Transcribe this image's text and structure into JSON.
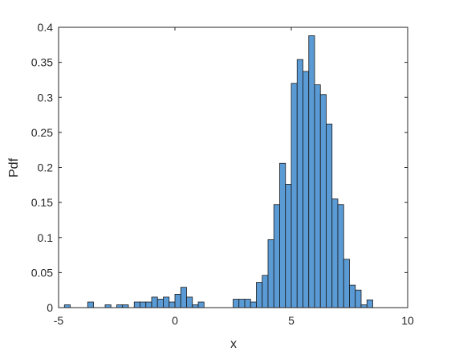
{
  "chart_data": {
    "type": "bar",
    "subtype": "histogram",
    "title": "",
    "xlabel": "x",
    "ylabel": "Pdf",
    "xlim": [
      -5,
      10
    ],
    "ylim": [
      0,
      0.4
    ],
    "xticks": [
      -5,
      0,
      5,
      10
    ],
    "xtick_labels": [
      "-5",
      "0",
      "5",
      "10"
    ],
    "yticks": [
      0,
      0.05,
      0.1,
      0.15,
      0.2,
      0.25,
      0.3,
      0.35,
      0.4
    ],
    "ytick_labels": [
      "0",
      "0.05",
      "0.1",
      "0.15",
      "0.2",
      "0.25",
      "0.3",
      "0.35",
      "0.4"
    ],
    "grid": false,
    "box": true,
    "bar_color": "#5B9BD5",
    "edge_color": "#1a1a1a",
    "axis_color": "#262626",
    "bin_width": 0.25,
    "bins": [
      {
        "x0": -4.75,
        "value": 0.004
      },
      {
        "x0": -3.75,
        "value": 0.008
      },
      {
        "x0": -3.0,
        "value": 0.004
      },
      {
        "x0": -2.5,
        "value": 0.004
      },
      {
        "x0": -2.25,
        "value": 0.004
      },
      {
        "x0": -1.75,
        "value": 0.008
      },
      {
        "x0": -1.5,
        "value": 0.008
      },
      {
        "x0": -1.25,
        "value": 0.008
      },
      {
        "x0": -1.0,
        "value": 0.015
      },
      {
        "x0": -0.75,
        "value": 0.012
      },
      {
        "x0": -0.5,
        "value": 0.015
      },
      {
        "x0": -0.25,
        "value": 0.008
      },
      {
        "x0": 0.0,
        "value": 0.019
      },
      {
        "x0": 0.25,
        "value": 0.029
      },
      {
        "x0": 0.5,
        "value": 0.015
      },
      {
        "x0": 0.75,
        "value": 0.004
      },
      {
        "x0": 1.0,
        "value": 0.008
      },
      {
        "x0": 2.5,
        "value": 0.012
      },
      {
        "x0": 2.75,
        "value": 0.012
      },
      {
        "x0": 3.0,
        "value": 0.012
      },
      {
        "x0": 3.25,
        "value": 0.008
      },
      {
        "x0": 3.5,
        "value": 0.036
      },
      {
        "x0": 3.75,
        "value": 0.046
      },
      {
        "x0": 4.0,
        "value": 0.097
      },
      {
        "x0": 4.25,
        "value": 0.147
      },
      {
        "x0": 4.5,
        "value": 0.206
      },
      {
        "x0": 4.75,
        "value": 0.176
      },
      {
        "x0": 5.0,
        "value": 0.32
      },
      {
        "x0": 5.25,
        "value": 0.354
      },
      {
        "x0": 5.5,
        "value": 0.337
      },
      {
        "x0": 5.75,
        "value": 0.388
      },
      {
        "x0": 6.0,
        "value": 0.318
      },
      {
        "x0": 6.25,
        "value": 0.304
      },
      {
        "x0": 6.5,
        "value": 0.262
      },
      {
        "x0": 6.75,
        "value": 0.155
      },
      {
        "x0": 7.0,
        "value": 0.147
      },
      {
        "x0": 7.25,
        "value": 0.069
      },
      {
        "x0": 7.5,
        "value": 0.032
      },
      {
        "x0": 7.75,
        "value": 0.025
      },
      {
        "x0": 8.0,
        "value": 0.004
      },
      {
        "x0": 8.25,
        "value": 0.011
      }
    ]
  }
}
